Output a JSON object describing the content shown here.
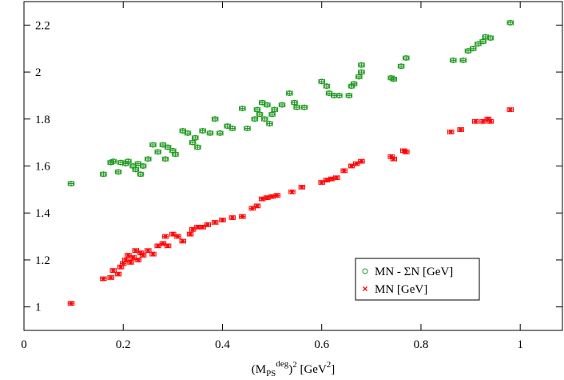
{
  "chart_data": {
    "type": "scatter",
    "xlabel_parts": [
      "(M",
      "PS",
      "deg",
      ")",
      "2",
      "   [GeV",
      "2",
      "]"
    ],
    "xlim": [
      0,
      1.085
    ],
    "ylim": [
      0.9,
      2.3
    ],
    "xticks": [
      0,
      0.2,
      0.4,
      0.6,
      0.8,
      1
    ],
    "yticks": [
      1,
      1.2,
      1.4,
      1.6,
      1.8,
      2,
      2.2
    ],
    "legend": "lower right",
    "series": [
      {
        "name": "MN - ΣN  [GeV]",
        "color": "#1f9a1f",
        "marker": "circle",
        "xerr": 0.006,
        "yerr": 0.008,
        "x": [
          0.095,
          0.16,
          0.175,
          0.18,
          0.19,
          0.195,
          0.205,
          0.21,
          0.22,
          0.225,
          0.23,
          0.235,
          0.24,
          0.25,
          0.26,
          0.27,
          0.28,
          0.285,
          0.29,
          0.3,
          0.305,
          0.32,
          0.33,
          0.34,
          0.345,
          0.35,
          0.36,
          0.375,
          0.385,
          0.395,
          0.41,
          0.42,
          0.44,
          0.45,
          0.465,
          0.47,
          0.475,
          0.48,
          0.485,
          0.49,
          0.495,
          0.5,
          0.505,
          0.52,
          0.535,
          0.545,
          0.55,
          0.565,
          0.6,
          0.61,
          0.615,
          0.625,
          0.635,
          0.655,
          0.66,
          0.665,
          0.675,
          0.68,
          0.68,
          0.74,
          0.745,
          0.76,
          0.77,
          0.865,
          0.885,
          0.895,
          0.905,
          0.915,
          0.925,
          0.93,
          0.94,
          0.98
        ],
        "y": [
          1.525,
          1.565,
          1.615,
          1.62,
          1.575,
          1.615,
          1.61,
          1.62,
          1.6,
          1.585,
          1.61,
          1.565,
          1.6,
          1.63,
          1.69,
          1.66,
          1.69,
          1.63,
          1.68,
          1.665,
          1.65,
          1.75,
          1.74,
          1.7,
          1.72,
          1.68,
          1.75,
          1.74,
          1.8,
          1.74,
          1.77,
          1.76,
          1.845,
          1.76,
          1.8,
          1.84,
          1.82,
          1.87,
          1.8,
          1.86,
          1.78,
          1.82,
          1.84,
          1.86,
          1.91,
          1.87,
          1.85,
          1.85,
          1.96,
          1.94,
          1.91,
          1.9,
          1.9,
          1.9,
          1.94,
          1.95,
          1.98,
          2.0,
          2.03,
          1.975,
          1.97,
          2.025,
          2.06,
          2.05,
          2.05,
          2.09,
          2.1,
          2.12,
          2.13,
          2.15,
          2.145,
          2.21
        ]
      },
      {
        "name": "MN  [GeV]",
        "color": "#ff0000",
        "marker": "x",
        "xerr": 0.006,
        "yerr": 0.008,
        "x": [
          0.095,
          0.16,
          0.175,
          0.18,
          0.19,
          0.195,
          0.2,
          0.205,
          0.21,
          0.215,
          0.22,
          0.225,
          0.23,
          0.235,
          0.24,
          0.25,
          0.26,
          0.27,
          0.28,
          0.285,
          0.29,
          0.3,
          0.31,
          0.32,
          0.335,
          0.34,
          0.35,
          0.36,
          0.37,
          0.385,
          0.4,
          0.42,
          0.44,
          0.46,
          0.47,
          0.48,
          0.49,
          0.5,
          0.51,
          0.54,
          0.56,
          0.6,
          0.61,
          0.62,
          0.63,
          0.645,
          0.66,
          0.67,
          0.68,
          0.74,
          0.745,
          0.765,
          0.77,
          0.86,
          0.88,
          0.91,
          0.925,
          0.935,
          0.94,
          0.98
        ],
        "y": [
          1.015,
          1.12,
          1.125,
          1.155,
          1.14,
          1.17,
          1.185,
          1.2,
          1.22,
          1.19,
          1.21,
          1.24,
          1.2,
          1.23,
          1.22,
          1.24,
          1.225,
          1.26,
          1.27,
          1.3,
          1.26,
          1.31,
          1.3,
          1.28,
          1.31,
          1.33,
          1.34,
          1.34,
          1.35,
          1.36,
          1.37,
          1.38,
          1.385,
          1.42,
          1.43,
          1.46,
          1.465,
          1.47,
          1.475,
          1.49,
          1.51,
          1.53,
          1.54,
          1.545,
          1.55,
          1.58,
          1.6,
          1.61,
          1.62,
          1.64,
          1.63,
          1.665,
          1.66,
          1.745,
          1.755,
          1.79,
          1.79,
          1.8,
          1.79,
          1.84
        ]
      }
    ]
  }
}
